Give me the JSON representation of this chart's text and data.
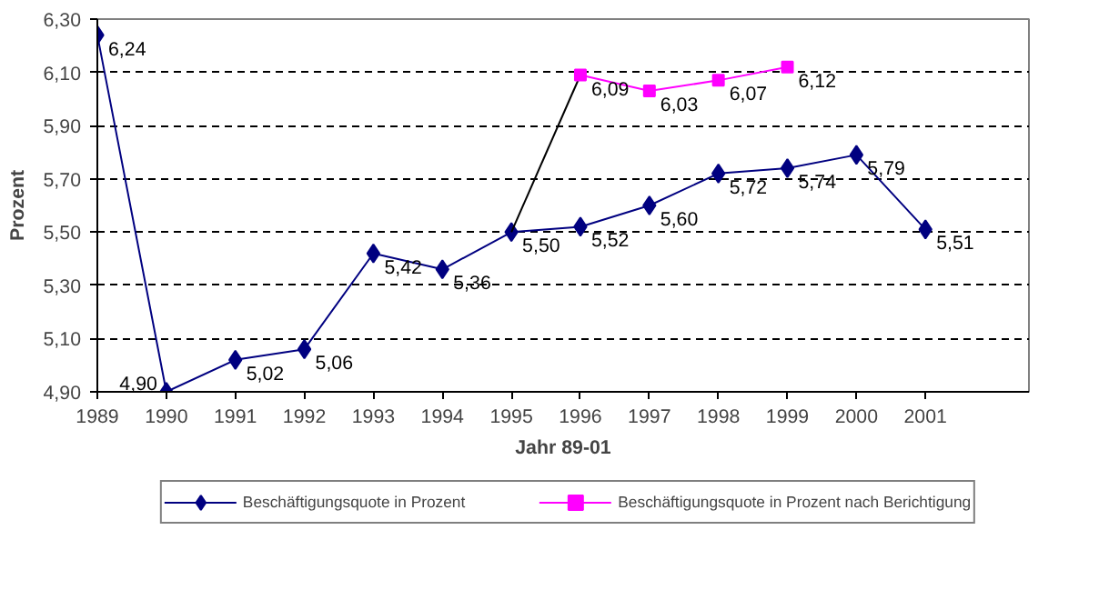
{
  "chart_data": {
    "type": "line",
    "xlabel": "Jahr 89-01",
    "ylabel": "Prozent",
    "x": [
      1989,
      1990,
      1991,
      1992,
      1993,
      1994,
      1995,
      1996,
      1997,
      1998,
      1999,
      2000,
      2001
    ],
    "series": [
      {
        "name": "Beschäftigungsquote in Prozent",
        "color": "#000080",
        "marker": "diamond",
        "values": [
          6.24,
          4.9,
          5.02,
          5.06,
          5.42,
          5.36,
          5.5,
          5.52,
          5.6,
          5.72,
          5.74,
          5.79,
          5.51
        ],
        "value_labels": [
          "6,24",
          "4,90",
          "5,02",
          "5,06",
          "5,42",
          "5,36",
          "5,50",
          "5,52",
          "5,60",
          "5,72",
          "5,74",
          "5,79",
          "5,51"
        ]
      },
      {
        "color": "#000000",
        "marker": "none",
        "x": [
          1995,
          1996
        ],
        "values": [
          5.5,
          6.09
        ]
      },
      {
        "name": "Beschäftigungsquote in Prozent nach Berichtigung",
        "color": "#ff00ff",
        "marker": "square",
        "x": [
          1996,
          1997,
          1998,
          1999
        ],
        "values": [
          6.09,
          6.03,
          6.07,
          6.12
        ],
        "value_labels": [
          "6,09",
          "6,03",
          "6,07",
          "6,12"
        ]
      }
    ],
    "xlim": [
      1989,
      2002.5
    ],
    "xticks": [
      1989,
      1990,
      1991,
      1992,
      1993,
      1994,
      1995,
      1996,
      1997,
      1998,
      1999,
      2000,
      2001
    ],
    "ylim": [
      4.9,
      6.3
    ],
    "yticks": [
      {
        "value": 4.9,
        "label": "4,90"
      },
      {
        "value": 5.1,
        "label": "5,10"
      },
      {
        "value": 5.3,
        "label": "5,30"
      },
      {
        "value": 5.5,
        "label": "5,50"
      },
      {
        "value": 5.7,
        "label": "5,70"
      },
      {
        "value": 5.9,
        "label": "5,90"
      },
      {
        "value": 6.1,
        "label": "6,10"
      },
      {
        "value": 6.3,
        "label": "6,30"
      }
    ],
    "grid": "y",
    "legend": "bottom",
    "line_style": "solid"
  }
}
